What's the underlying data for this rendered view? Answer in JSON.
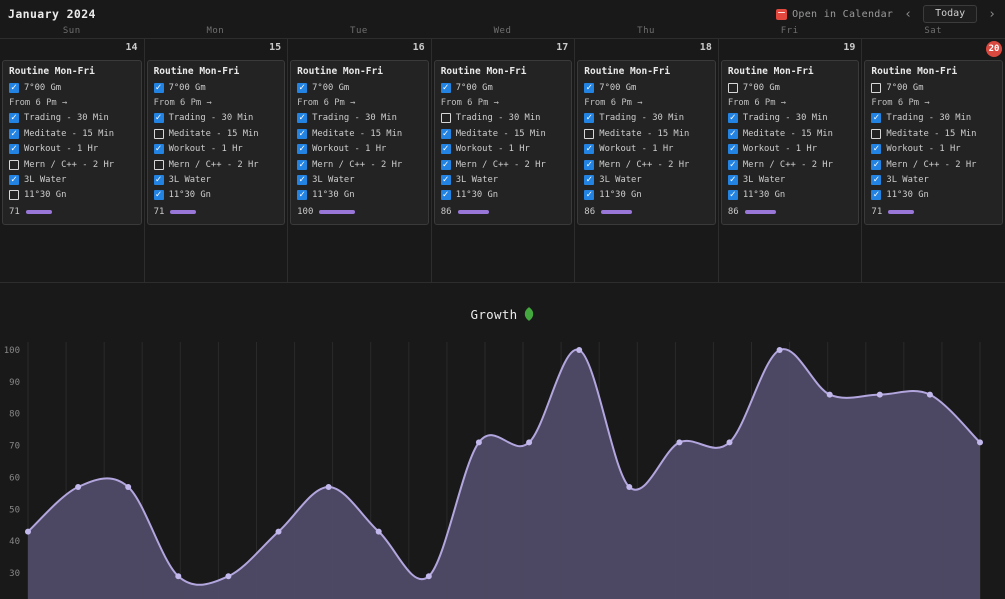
{
  "header": {
    "month_title": "January 2024",
    "open_in_calendar_label": "Open in Calendar",
    "prev_chevron": "‹",
    "today_label": "Today",
    "next_chevron": "›"
  },
  "weekday_labels": [
    "Sun",
    "Mon",
    "Tue",
    "Wed",
    "Thu",
    "Fri",
    "Sat"
  ],
  "routine": {
    "card_title": "Routine Mon-Fri",
    "note_line": "From 6 Pm →",
    "check_glyph": "✓",
    "item_labels": [
      "7°00 Gm",
      "Trading - 30 Min",
      "Meditate - 15 Min",
      "Workout - 1 Hr",
      "Mern / C++ - 2 Hr",
      "3L Water",
      "11°30 Gn"
    ]
  },
  "days": [
    {
      "weekday": "Sun",
      "date": "14",
      "today": false,
      "checks": [
        true,
        true,
        true,
        true,
        false,
        true,
        false
      ],
      "progress": 71
    },
    {
      "weekday": "Mon",
      "date": "15",
      "today": false,
      "checks": [
        true,
        true,
        false,
        true,
        false,
        true,
        true
      ],
      "progress": 71
    },
    {
      "weekday": "Tue",
      "date": "16",
      "today": false,
      "checks": [
        true,
        true,
        true,
        true,
        true,
        true,
        true
      ],
      "progress": 100
    },
    {
      "weekday": "Wed",
      "date": "17",
      "today": false,
      "checks": [
        true,
        false,
        true,
        true,
        true,
        true,
        true
      ],
      "progress": 86
    },
    {
      "weekday": "Thu",
      "date": "18",
      "today": false,
      "checks": [
        true,
        true,
        false,
        true,
        true,
        true,
        true
      ],
      "progress": 86
    },
    {
      "weekday": "Fri",
      "date": "19",
      "today": false,
      "checks": [
        false,
        true,
        true,
        true,
        true,
        true,
        true
      ],
      "progress": 86
    },
    {
      "weekday": "Sat",
      "date": "20",
      "today": true,
      "checks": [
        false,
        true,
        false,
        true,
        true,
        true,
        true
      ],
      "progress": 71
    }
  ],
  "chart_data": {
    "type": "area",
    "title": "Growth",
    "title_icon": "leaf-icon",
    "x": [
      1,
      2,
      3,
      4,
      5,
      6,
      7,
      8,
      9,
      10,
      11,
      12,
      13,
      14,
      15,
      16,
      17,
      18,
      19,
      20
    ],
    "values": [
      43,
      57,
      57,
      29,
      29,
      43,
      57,
      43,
      29,
      71,
      71,
      100,
      57,
      71,
      71,
      100,
      86,
      86,
      86,
      71
    ],
    "xlabel": "",
    "ylabel": "",
    "y_ticks": [
      100,
      90,
      80,
      70,
      60,
      50,
      40,
      30
    ],
    "ylim": [
      30,
      100
    ],
    "grid": "vertical",
    "legend": false,
    "smooth": true
  },
  "colors": {
    "checkbox_blue": "#2383e2",
    "progress_purple": "#9877d9",
    "chart_line": "#b3a6de",
    "chart_fill": "#4f4a66",
    "chart_point": "#c3b8ec",
    "grid_line": "#2a2a2a",
    "axis_label_gray": "#868686",
    "today_red": "#d9493f",
    "calendar_icon_red": "#e2483d",
    "leaf_green": "#43a83e"
  }
}
